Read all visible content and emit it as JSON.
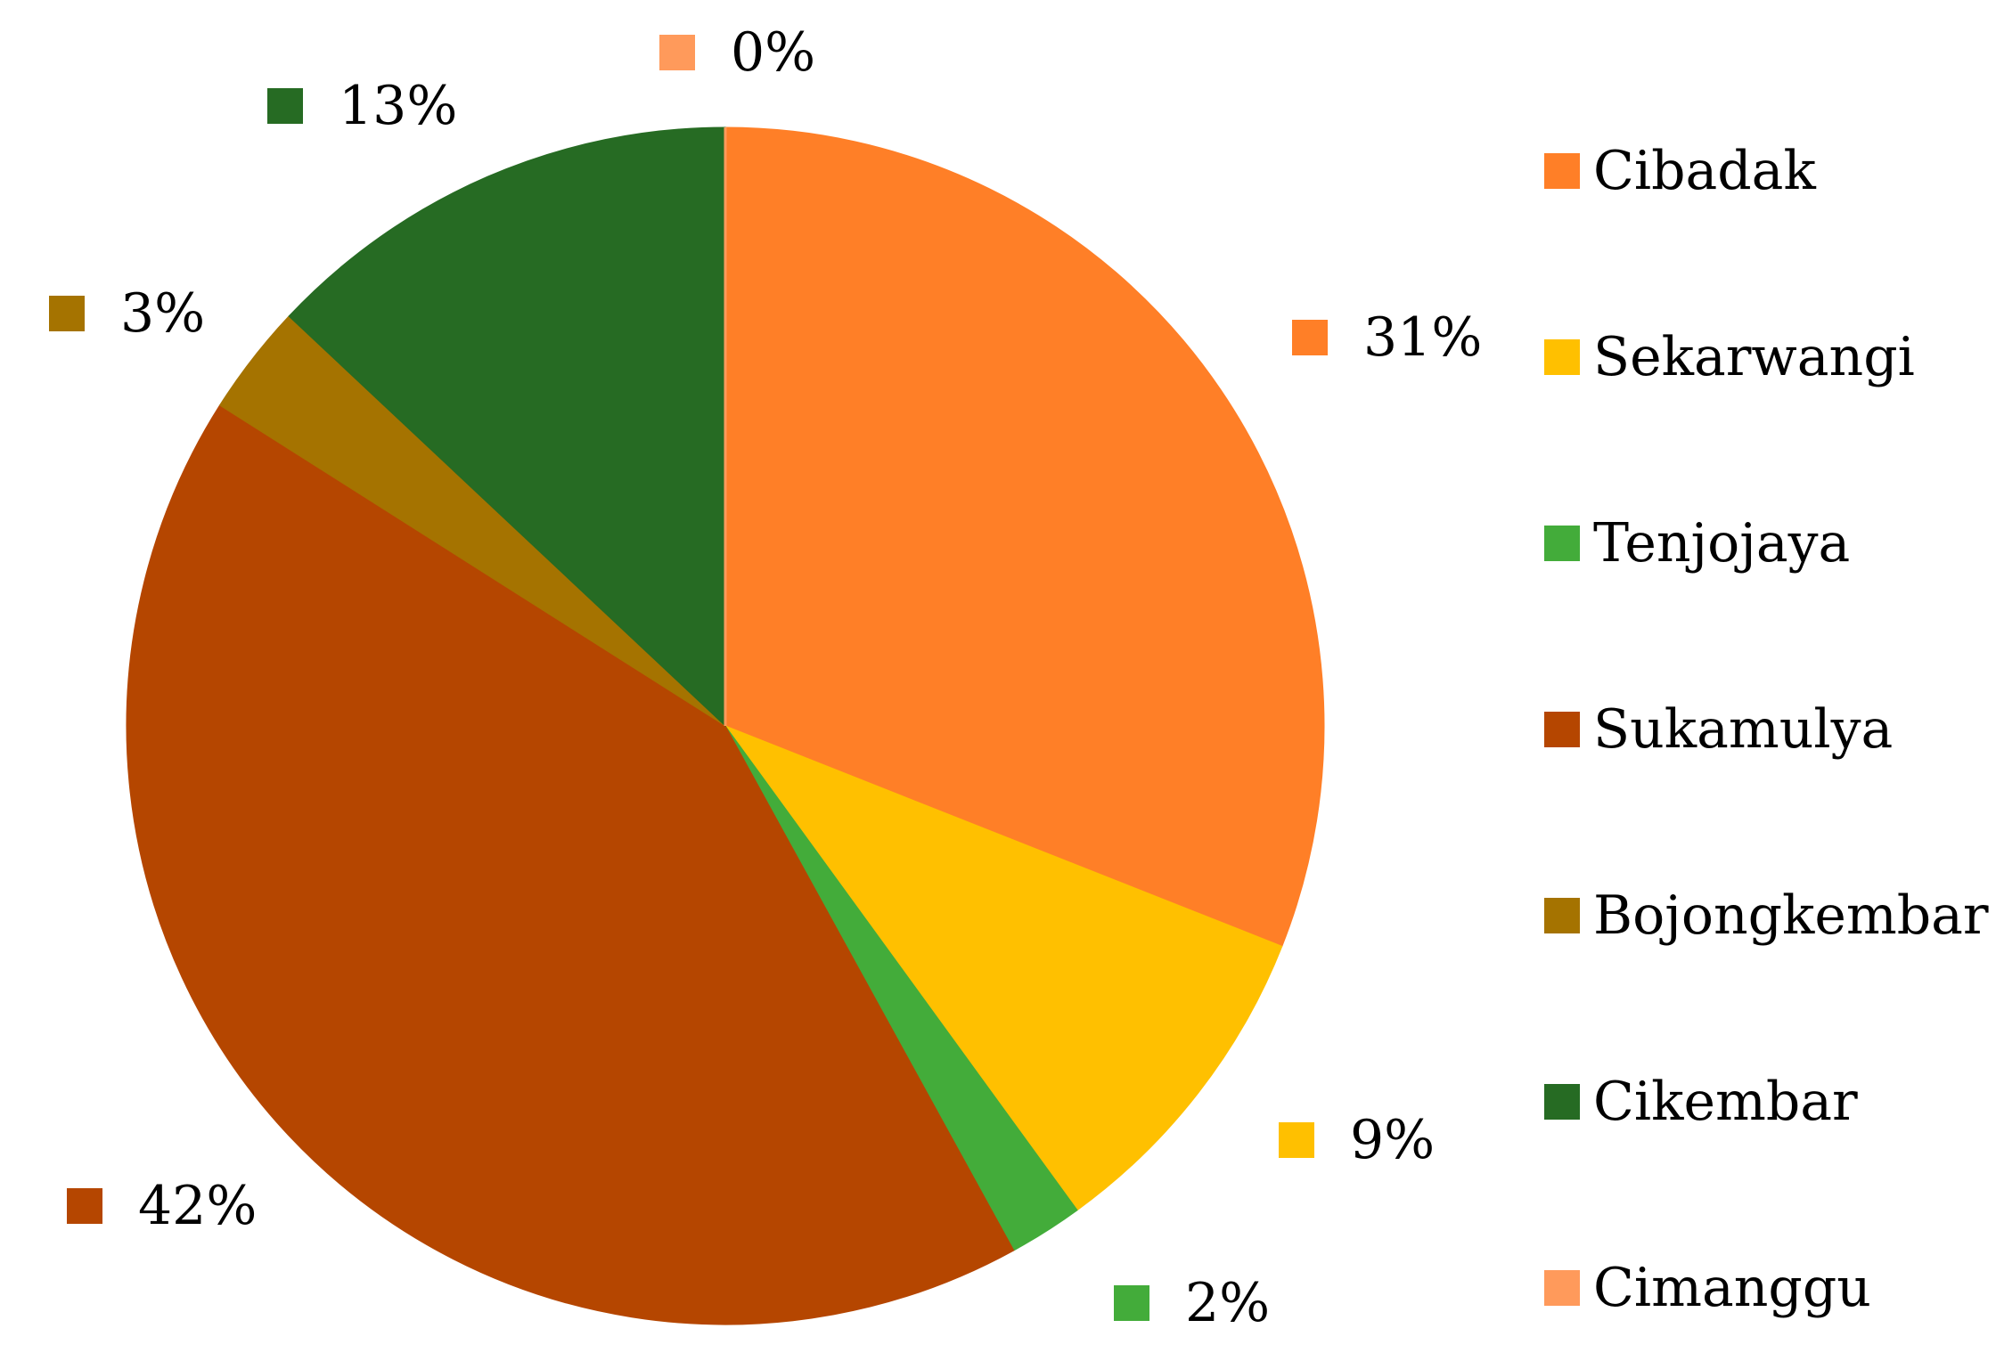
{
  "chart_data": {
    "type": "pie",
    "categories": [
      "Cibadak",
      "Sekarwangi",
      "Tenjojaya",
      "Sukamulya",
      "Bojongkembar",
      "Cikembar",
      "Cimanggu"
    ],
    "values": [
      31,
      9,
      2,
      42,
      3,
      13,
      0
    ],
    "data_labels": [
      "31%",
      "9%",
      "2%",
      "42%",
      "3%",
      "13%",
      "0%"
    ],
    "colors": [
      "#FF7F27",
      "#FFC000",
      "#43AC3A",
      "#B54600",
      "#A57300",
      "#266B23",
      "#FF9A5B"
    ],
    "legend_position": "right",
    "start_angle": "top, clockwise"
  }
}
